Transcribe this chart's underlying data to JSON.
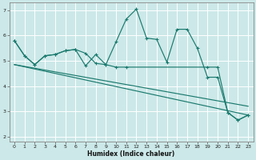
{
  "xlabel": "Humidex (Indice chaleur)",
  "bg_color": "#cce8e8",
  "grid_color": "#ffffff",
  "line_color": "#1a7a6e",
  "xlim": [
    -0.5,
    23.5
  ],
  "ylim": [
    1.8,
    7.3
  ],
  "xticks": [
    0,
    1,
    2,
    3,
    4,
    5,
    6,
    7,
    8,
    9,
    10,
    11,
    12,
    13,
    14,
    15,
    16,
    17,
    18,
    19,
    20,
    21,
    22,
    23
  ],
  "yticks": [
    2,
    3,
    4,
    5,
    6,
    7
  ],
  "line1_x": [
    0,
    1,
    2,
    3,
    4,
    5,
    6,
    7,
    8,
    9,
    10,
    11,
    12,
    13,
    14,
    15,
    16,
    17,
    18,
    19,
    20,
    21,
    22,
    23
  ],
  "line1_y": [
    5.8,
    5.2,
    4.85,
    5.2,
    5.25,
    5.4,
    5.45,
    5.3,
    4.9,
    4.85,
    5.75,
    6.65,
    7.05,
    5.9,
    5.85,
    4.95,
    6.25,
    6.25,
    5.5,
    4.35,
    4.35,
    2.95,
    2.65,
    2.85
  ],
  "line2_x": [
    0,
    1,
    2,
    3,
    4,
    5,
    6,
    7,
    8,
    9,
    10,
    11,
    19,
    20,
    21,
    22,
    23
  ],
  "line2_y": [
    5.8,
    5.2,
    4.85,
    5.2,
    5.25,
    5.4,
    5.45,
    4.8,
    5.25,
    4.85,
    4.75,
    4.75,
    4.75,
    4.75,
    2.95,
    2.65,
    2.85
  ],
  "line3_x": [
    0,
    23
  ],
  "line3_y": [
    4.85,
    2.85
  ],
  "line4_x": [
    0,
    23
  ],
  "line4_y": [
    4.85,
    3.2
  ],
  "figsize": [
    3.2,
    2.0
  ],
  "dpi": 100
}
